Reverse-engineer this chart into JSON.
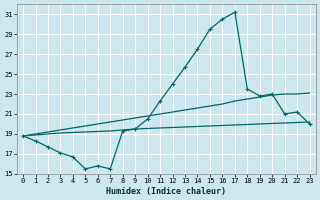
{
  "xlabel": "Humidex (Indice chaleur)",
  "bg_color": "#cce8ee",
  "grid_color": "#ffffff",
  "line_color": "#006666",
  "xlim": [
    -0.5,
    23.5
  ],
  "ylim": [
    15,
    32
  ],
  "yticks": [
    15,
    17,
    19,
    21,
    23,
    25,
    27,
    29,
    31
  ],
  "xticks": [
    0,
    1,
    2,
    3,
    4,
    5,
    6,
    7,
    8,
    9,
    10,
    11,
    12,
    13,
    14,
    15,
    16,
    17,
    18,
    19,
    20,
    21,
    22,
    23
  ],
  "line1_x": [
    0,
    1,
    2,
    3,
    4,
    5,
    6,
    7,
    8,
    9,
    10,
    11,
    12,
    13,
    14,
    15,
    16,
    17,
    18,
    19,
    20,
    21,
    22,
    23
  ],
  "line1_y": [
    18.8,
    18.3,
    17.7,
    17.1,
    16.7,
    15.5,
    15.8,
    15.5,
    19.3,
    19.5,
    20.5,
    22.3,
    24.0,
    25.7,
    27.5,
    29.5,
    30.5,
    31.2,
    23.5,
    22.8,
    23.0,
    21.0,
    21.2,
    20.0
  ],
  "line2_x": [
    0,
    1,
    2,
    3,
    4,
    5,
    6,
    7,
    8,
    9,
    10,
    11,
    12,
    13,
    14,
    15,
    16,
    17,
    18,
    19,
    20,
    21,
    22,
    23
  ],
  "line2_y": [
    18.8,
    19.0,
    19.2,
    19.4,
    19.6,
    19.8,
    20.0,
    20.2,
    20.4,
    20.6,
    20.8,
    21.0,
    21.2,
    21.4,
    21.6,
    21.8,
    22.0,
    22.3,
    22.5,
    22.7,
    22.9,
    23.0,
    23.0,
    23.1
  ],
  "line3_x": [
    0,
    1,
    2,
    3,
    4,
    5,
    6,
    7,
    8,
    9,
    10,
    11,
    12,
    13,
    14,
    15,
    16,
    17,
    18,
    19,
    20,
    21,
    22,
    23
  ],
  "line3_y": [
    18.8,
    18.9,
    19.0,
    19.1,
    19.15,
    19.2,
    19.25,
    19.3,
    19.4,
    19.5,
    19.55,
    19.6,
    19.65,
    19.7,
    19.75,
    19.8,
    19.85,
    19.9,
    19.95,
    20.0,
    20.05,
    20.1,
    20.15,
    20.2
  ]
}
